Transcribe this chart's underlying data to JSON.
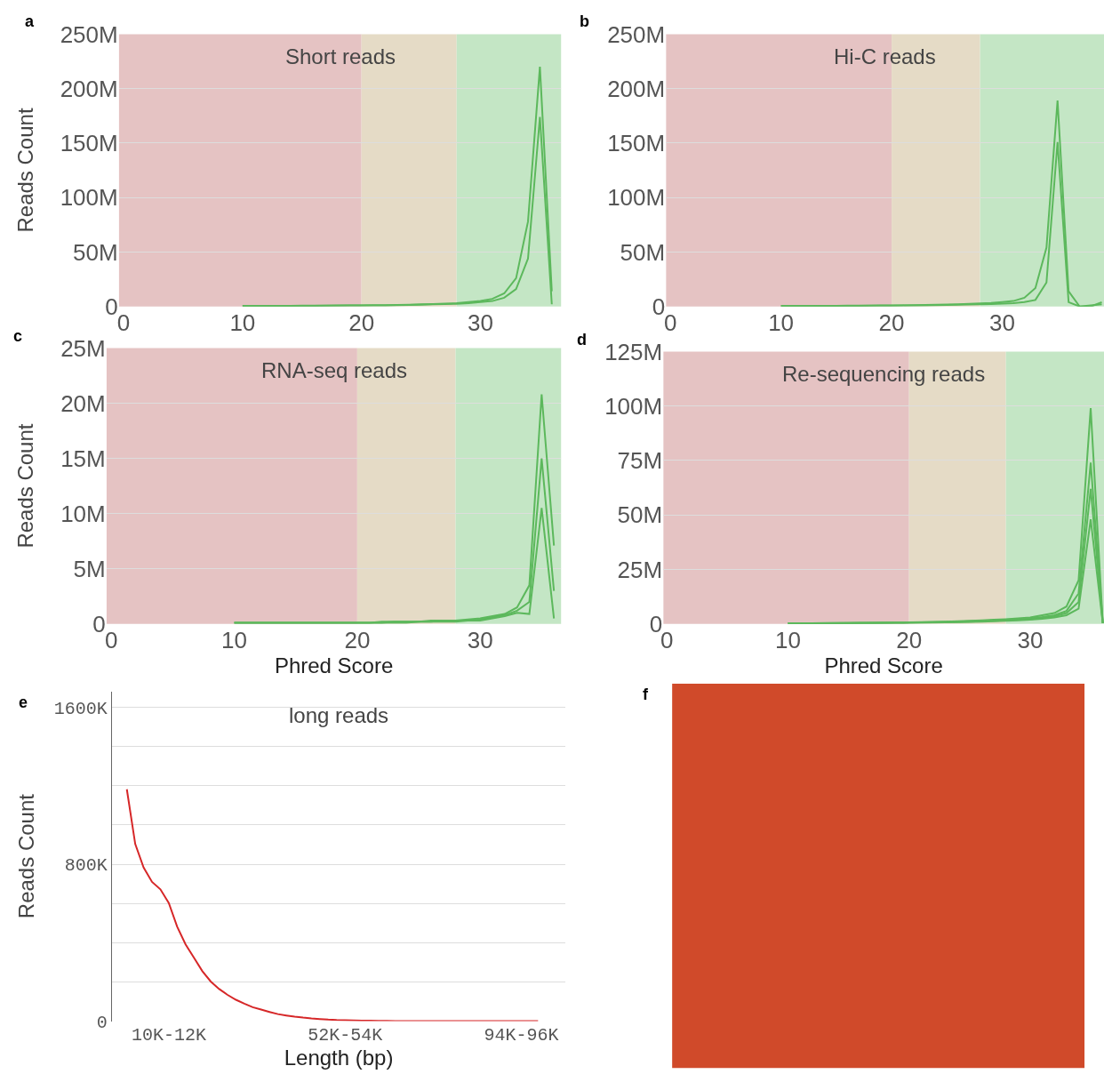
{
  "chart_data": [
    {
      "type": "line",
      "title": "Short reads",
      "annotations": [
        "a"
      ],
      "ylabel": "Reads Count",
      "x": [
        10,
        11,
        12,
        13,
        14,
        15,
        16,
        17,
        18,
        19,
        20,
        21,
        22,
        23,
        24,
        25,
        26,
        27,
        28,
        29,
        30,
        31,
        32,
        33,
        34,
        35,
        36
      ],
      "series": [
        {
          "color": "#5cb85c",
          "values": [
            500000,
            500000,
            500000,
            600000,
            600000,
            700000,
            700000,
            800000,
            900000,
            1000000,
            1000000,
            1200000,
            1300000,
            1500000,
            1700000,
            2000000,
            2300000,
            2700000,
            3000000,
            4000000,
            5000000,
            7000000,
            12000000,
            26000000,
            78000000,
            220000000,
            14000000
          ]
        },
        {
          "color": "#5cb85c",
          "values": [
            400000,
            400000,
            400000,
            500000,
            500000,
            600000,
            600000,
            700000,
            800000,
            900000,
            900000,
            1000000,
            1100000,
            1300000,
            1500000,
            1700000,
            2000000,
            2300000,
            2500000,
            3000000,
            4000000,
            5000000,
            8000000,
            16000000,
            44000000,
            174000000,
            2000000
          ]
        }
      ],
      "xlim": [
        -0.4,
        36.8
      ],
      "xticks": [
        0,
        10,
        20,
        30
      ],
      "ylim": [
        0,
        250000000
      ],
      "yticks": [
        0,
        {
          "value": 50000000,
          "label": "50M"
        },
        {
          "value": 100000000,
          "label": "100M"
        },
        {
          "value": 150000000,
          "label": "150M"
        },
        {
          "value": 200000000,
          "label": "200M"
        },
        {
          "value": 250000000,
          "label": "250M"
        }
      ],
      "grid": "y",
      "bands": [
        {
          "axis": "x",
          "from": -0.4,
          "to": 20,
          "color": "#e5c3c3"
        },
        {
          "axis": "x",
          "from": 20,
          "to": 28,
          "color": "#e5dbc6"
        },
        {
          "axis": "x",
          "from": 28,
          "to": 36.8,
          "color": "#c4e6c5"
        }
      ]
    },
    {
      "type": "line",
      "title": "Hi-C reads",
      "annotations": [
        "b"
      ],
      "x": [
        10,
        11,
        12,
        13,
        14,
        15,
        16,
        17,
        18,
        19,
        20,
        21,
        22,
        23,
        24,
        25,
        26,
        27,
        28,
        29,
        30,
        31,
        32,
        33,
        34,
        35,
        36,
        37,
        38,
        39
      ],
      "series": [
        {
          "color": "#5cb85c",
          "values": [
            500000,
            500000,
            500000,
            500000,
            600000,
            600000,
            700000,
            700000,
            800000,
            900000,
            1000000,
            1100000,
            1200000,
            1400000,
            1600000,
            1800000,
            2000000,
            2400000,
            2800000,
            3200000,
            4000000,
            5000000,
            8000000,
            17000000,
            54000000,
            189000000,
            14000000,
            0,
            0,
            4000000
          ]
        },
        {
          "color": "#5cb85c",
          "values": [
            400000,
            400000,
            400000,
            400000,
            500000,
            500000,
            600000,
            600000,
            700000,
            800000,
            800000,
            900000,
            1000000,
            1100000,
            1200000,
            1400000,
            1600000,
            1800000,
            2000000,
            2300000,
            2600000,
            3000000,
            4000000,
            6000000,
            22000000,
            151000000,
            4000000,
            0,
            1000000,
            2000000
          ]
        }
      ],
      "xlim": [
        -0.4,
        39.2
      ],
      "xticks": [
        0,
        10,
        20,
        30
      ],
      "ylim": [
        0,
        250000000
      ],
      "yticks": [
        0,
        {
          "value": 50000000,
          "label": "50M"
        },
        {
          "value": 100000000,
          "label": "100M"
        },
        {
          "value": 150000000,
          "label": "150M"
        },
        {
          "value": 200000000,
          "label": "200M"
        },
        {
          "value": 250000000,
          "label": "250M"
        }
      ],
      "grid": "y",
      "bands": [
        {
          "axis": "x",
          "from": -0.4,
          "to": 20,
          "color": "#e5c3c3"
        },
        {
          "axis": "x",
          "from": 20,
          "to": 28,
          "color": "#e5dbc6"
        },
        {
          "axis": "x",
          "from": 28,
          "to": 39.2,
          "color": "#c4e6c5"
        }
      ]
    },
    {
      "type": "line",
      "title": "RNA-seq reads",
      "annotations": [
        "c"
      ],
      "xlabel": "Phred Score",
      "ylabel": "Reads Count",
      "x": [
        10,
        11,
        12,
        13,
        14,
        15,
        16,
        17,
        18,
        19,
        20,
        21,
        22,
        23,
        24,
        25,
        26,
        27,
        28,
        29,
        30,
        31,
        32,
        33,
        34,
        35,
        36
      ],
      "series": [
        {
          "color": "#5cb85c",
          "values": [
            100000,
            100000,
            100000,
            100000,
            100000,
            100000,
            100000,
            100000,
            100000,
            100000,
            100000,
            100000,
            200000,
            200000,
            200000,
            200000,
            300000,
            300000,
            300000,
            400000,
            500000,
            700000,
            900000,
            1500000,
            3500000,
            20800000,
            7100000
          ]
        },
        {
          "color": "#5cb85c",
          "values": [
            100000,
            100000,
            100000,
            100000,
            100000,
            100000,
            100000,
            100000,
            100000,
            100000,
            100000,
            100000,
            100000,
            200000,
            200000,
            200000,
            200000,
            300000,
            300000,
            300000,
            400000,
            600000,
            800000,
            1200000,
            2000000,
            15000000,
            3000000
          ]
        },
        {
          "color": "#5cb85c",
          "values": [
            100000,
            100000,
            100000,
            100000,
            100000,
            100000,
            100000,
            100000,
            100000,
            100000,
            100000,
            100000,
            100000,
            100000,
            100000,
            200000,
            200000,
            200000,
            200000,
            300000,
            300000,
            500000,
            700000,
            1000000,
            900000,
            10500000,
            500000
          ]
        }
      ],
      "xlim": [
        -0.4,
        36.6
      ],
      "xticks": [
        0,
        10,
        20,
        30
      ],
      "ylim": [
        0,
        25000000
      ],
      "yticks": [
        0,
        {
          "value": 5000000,
          "label": "5M"
        },
        {
          "value": 10000000,
          "label": "10M"
        },
        {
          "value": 15000000,
          "label": "15M"
        },
        {
          "value": 20000000,
          "label": "20M"
        },
        {
          "value": 25000000,
          "label": "25M"
        }
      ],
      "grid": "y",
      "bands": [
        {
          "axis": "x",
          "from": -0.4,
          "to": 20,
          "color": "#e5c3c3"
        },
        {
          "axis": "x",
          "from": 20,
          "to": 28,
          "color": "#e5dbc6"
        },
        {
          "axis": "x",
          "from": 28,
          "to": 36.6,
          "color": "#c4e6c5"
        }
      ]
    },
    {
      "type": "line",
      "title": "Re-sequencing reads",
      "annotations": [
        "d"
      ],
      "xlabel": "Phred Score",
      "x": [
        10,
        11,
        12,
        13,
        14,
        15,
        16,
        17,
        18,
        19,
        20,
        21,
        22,
        23,
        24,
        25,
        26,
        27,
        28,
        29,
        30,
        31,
        32,
        33,
        34,
        35,
        36
      ],
      "series": [
        {
          "color": "#5cb85c",
          "values": [
            300000,
            300000,
            300000,
            400000,
            400000,
            400000,
            500000,
            500000,
            600000,
            600000,
            700000,
            800000,
            900000,
            1000000,
            1200000,
            1400000,
            1600000,
            1900000,
            2200000,
            2600000,
            3000000,
            4000000,
            5000000,
            8000000,
            20000000,
            99000000,
            400000
          ]
        },
        {
          "color": "#5cb85c",
          "values": [
            300000,
            300000,
            300000,
            300000,
            400000,
            400000,
            400000,
            500000,
            500000,
            600000,
            600000,
            700000,
            800000,
            900000,
            1000000,
            1200000,
            1400000,
            1600000,
            1900000,
            2200000,
            2600000,
            3200000,
            4000000,
            6000000,
            14000000,
            74000000,
            400000
          ]
        },
        {
          "color": "#5cb85c",
          "values": [
            200000,
            200000,
            300000,
            300000,
            300000,
            400000,
            400000,
            400000,
            500000,
            500000,
            600000,
            600000,
            700000,
            800000,
            900000,
            1000000,
            1200000,
            1400000,
            1600000,
            1900000,
            2200000,
            2800000,
            3500000,
            5000000,
            10000000,
            62000000,
            400000
          ]
        },
        {
          "color": "#5cb85c",
          "values": [
            200000,
            200000,
            200000,
            300000,
            300000,
            300000,
            400000,
            400000,
            400000,
            500000,
            500000,
            600000,
            600000,
            700000,
            800000,
            900000,
            1000000,
            1200000,
            1400000,
            1600000,
            1900000,
            2400000,
            3000000,
            4000000,
            7000000,
            48000000,
            400000
          ]
        }
      ],
      "xlim": [
        -0.3,
        36.1
      ],
      "xticks": [
        0,
        10,
        20,
        30
      ],
      "ylim": [
        0,
        125000000
      ],
      "yticks": [
        0,
        {
          "value": 25000000,
          "label": "25M"
        },
        {
          "value": 50000000,
          "label": "50M"
        },
        {
          "value": 75000000,
          "label": "75M"
        },
        {
          "value": 100000000,
          "label": "100M"
        },
        {
          "value": 125000000,
          "label": "125M"
        }
      ],
      "grid": "y",
      "bands": [
        {
          "axis": "x",
          "from": -0.3,
          "to": 20,
          "color": "#e5c3c3"
        },
        {
          "axis": "x",
          "from": 20,
          "to": 28,
          "color": "#e5dbc6"
        },
        {
          "axis": "x",
          "from": 28,
          "to": 36.1,
          "color": "#c4e6c5"
        }
      ]
    },
    {
      "type": "line",
      "title": "long reads",
      "annotations": [
        "e"
      ],
      "xlabel": "Length (bp)",
      "ylabel": "Reads Count",
      "categories": [
        null,
        null,
        null,
        null,
        null,
        "10K-12K",
        null,
        null,
        null,
        null,
        null,
        null,
        null,
        null,
        null,
        null,
        null,
        null,
        null,
        null,
        null,
        null,
        null,
        null,
        null,
        null,
        "52K-54K",
        null,
        null,
        null,
        null,
        null,
        null,
        null,
        null,
        null,
        null,
        null,
        null,
        null,
        null,
        null,
        null,
        null,
        null,
        null,
        null,
        "94K-96K",
        null,
        null
      ],
      "series": [
        {
          "color": "#d62728",
          "values": [
            1182000,
            903000,
            783000,
            710000,
            672000,
            602000,
            481000,
            391000,
            323000,
            255000,
            202000,
            164000,
            134000,
            109000,
            89000,
            71000,
            59000,
            47000,
            36000,
            29000,
            23000,
            18000,
            14000,
            11000,
            8000,
            6000,
            5000,
            4000,
            3000,
            2000,
            1000,
            1000,
            0,
            0,
            0,
            0,
            0,
            0,
            0,
            0,
            0,
            0,
            0,
            0,
            0,
            0,
            0,
            0,
            0,
            0
          ]
        }
      ],
      "ylim": [
        0,
        1680000
      ],
      "yticks": [
        0,
        {
          "value": 200000,
          "label": null
        },
        {
          "value": 400000,
          "label": null
        },
        {
          "value": 600000,
          "label": null
        },
        {
          "value": 800000,
          "label": "800K"
        },
        {
          "value": 1000000,
          "label": null
        },
        {
          "value": 1200000,
          "label": null
        },
        {
          "value": 1400000,
          "label": null
        },
        {
          "value": 1600000,
          "label": "1600K"
        }
      ],
      "grid": "y"
    },
    {
      "type": "other",
      "annotations": [
        "f"
      ]
    }
  ]
}
